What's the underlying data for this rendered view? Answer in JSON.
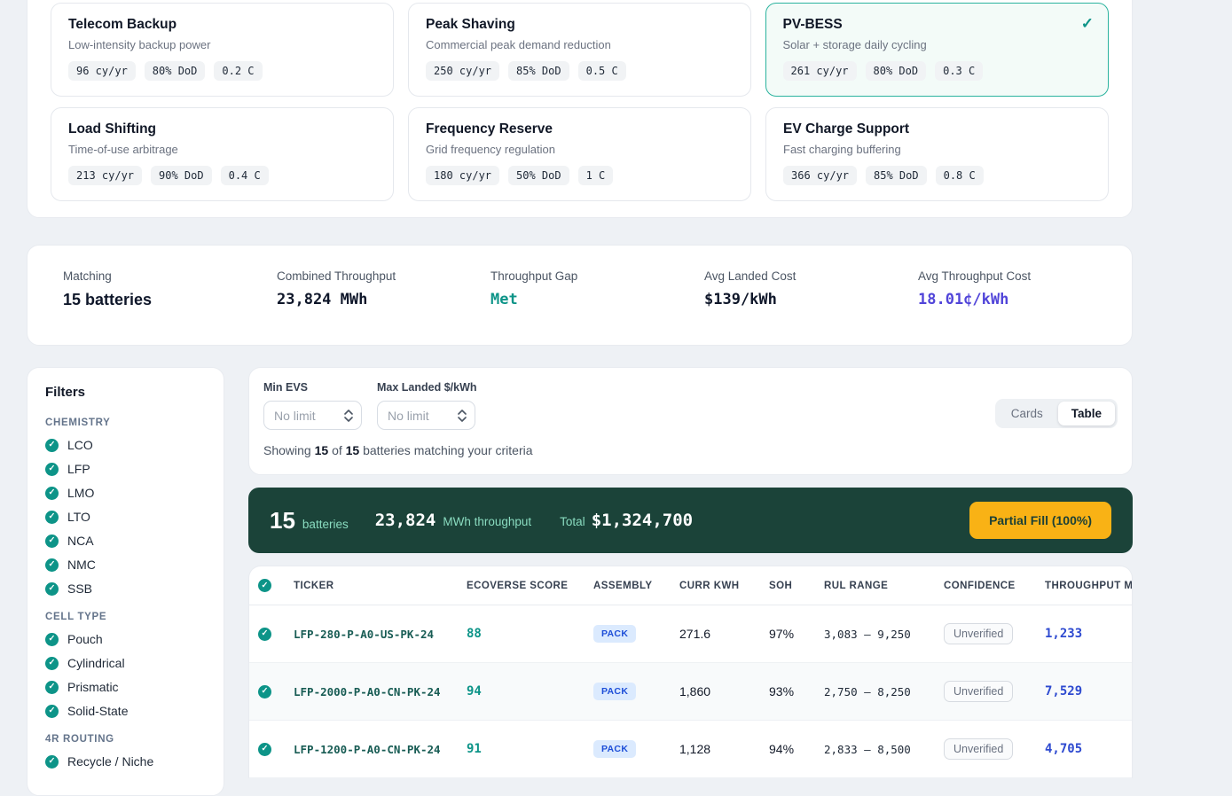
{
  "colors": {
    "teal": "#0d9488",
    "selected_border": "#2bb39e",
    "indigo": "#5145d9",
    "table_blue": "#2e4ad0",
    "summary_bar_bg": "#1b4339",
    "summary_bar_muted": "#8adcc0",
    "amber": "#f9b215"
  },
  "use_cases": [
    {
      "title": "Telecom Backup",
      "subtitle": "Low-intensity backup power",
      "chips": [
        "96 cy/yr",
        "80% DoD",
        "0.2 C"
      ],
      "selected": false
    },
    {
      "title": "Peak Shaving",
      "subtitle": "Commercial peak demand reduction",
      "chips": [
        "250 cy/yr",
        "85% DoD",
        "0.5 C"
      ],
      "selected": false
    },
    {
      "title": "PV-BESS",
      "subtitle": "Solar + storage daily cycling",
      "chips": [
        "261 cy/yr",
        "80% DoD",
        "0.3 C"
      ],
      "selected": true
    },
    {
      "title": "Load Shifting",
      "subtitle": "Time-of-use arbitrage",
      "chips": [
        "213 cy/yr",
        "90% DoD",
        "0.4 C"
      ],
      "selected": false
    },
    {
      "title": "Frequency Reserve",
      "subtitle": "Grid frequency regulation",
      "chips": [
        "180 cy/yr",
        "50% DoD",
        "1 C"
      ],
      "selected": false
    },
    {
      "title": "EV Charge Support",
      "subtitle": "Fast charging buffering",
      "chips": [
        "366 cy/yr",
        "85% DoD",
        "0.8 C"
      ],
      "selected": false
    }
  ],
  "selected_check": "✓",
  "stats": [
    {
      "label": "Matching",
      "value": "15 batteries",
      "style": "sans-dark"
    },
    {
      "label": "Combined Throughput",
      "value": "23,824 MWh",
      "style": "mono-dark"
    },
    {
      "label": "Throughput Gap",
      "value": "Met",
      "style": "mono-teal"
    },
    {
      "label": "Avg Landed Cost",
      "value": "$139/kWh",
      "style": "mono-dark"
    },
    {
      "label": "Avg Throughput Cost",
      "value": "18.01¢/kWh",
      "style": "mono-indigo"
    }
  ],
  "filters": {
    "title": "Filters",
    "groups": [
      {
        "label": "CHEMISTRY",
        "options": [
          "LCO",
          "LFP",
          "LMO",
          "LTO",
          "NCA",
          "NMC",
          "SSB"
        ]
      },
      {
        "label": "CELL TYPE",
        "options": [
          "Pouch",
          "Cylindrical",
          "Prismatic",
          "Solid-State"
        ]
      },
      {
        "label": "4R ROUTING",
        "options": [
          "Recycle / Niche"
        ]
      }
    ]
  },
  "controls": {
    "min_evs_label": "Min EVS",
    "max_landed_label": "Max Landed $/kWh",
    "no_limit_placeholder": "No limit",
    "view_toggle": {
      "cards": "Cards",
      "table": "Table",
      "active": "Table"
    },
    "showing": {
      "prefix": "Showing",
      "shown": "15",
      "of": "of",
      "total": "15",
      "suffix": "batteries matching your criteria"
    }
  },
  "summary_bar": {
    "count": "15",
    "count_label": "batteries",
    "throughput": "23,824",
    "throughput_label": "MWh throughput",
    "total_label": "Total",
    "total_value": "$1,324,700",
    "button": "Partial Fill (100%)"
  },
  "table": {
    "headers": [
      "TICKER",
      "ECOVERSE SCORE",
      "ASSEMBLY",
      "CURR KWH",
      "SOH",
      "RUL RANGE",
      "CONFIDENCE",
      "THROUGHPUT MWH"
    ],
    "rows": [
      {
        "ticker": "LFP-280-P-A0-US-PK-24",
        "score": "88",
        "assembly": "PACK",
        "curr_kwh": "271.6",
        "soh": "97%",
        "rul": "3,083 – 9,250",
        "confidence": "Unverified",
        "throughput": "1,233"
      },
      {
        "ticker": "LFP-2000-P-A0-CN-PK-24",
        "score": "94",
        "assembly": "PACK",
        "curr_kwh": "1,860",
        "soh": "93%",
        "rul": "2,750 – 8,250",
        "confidence": "Unverified",
        "throughput": "7,529"
      },
      {
        "ticker": "LFP-1200-P-A0-CN-PK-24",
        "score": "91",
        "assembly": "PACK",
        "curr_kwh": "1,128",
        "soh": "94%",
        "rul": "2,833 – 8,500",
        "confidence": "Unverified",
        "throughput": "4,705"
      }
    ]
  }
}
